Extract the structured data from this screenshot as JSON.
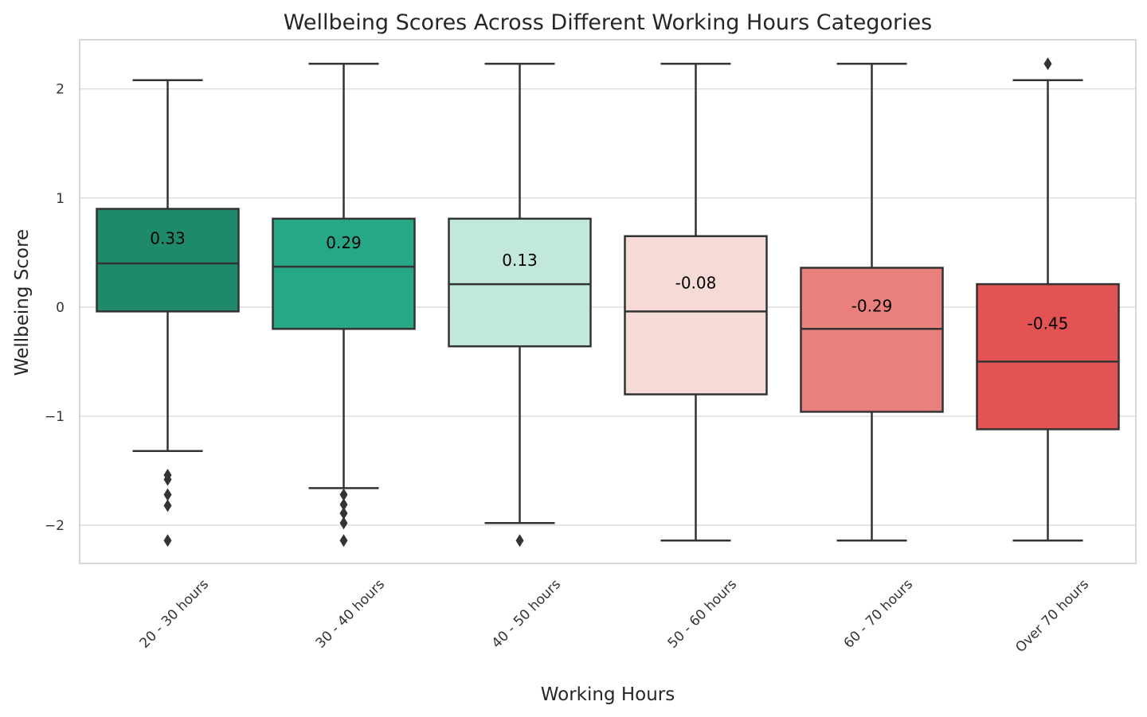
{
  "chart_data": {
    "type": "box",
    "title": "Wellbeing Scores Across Different Working Hours Categories",
    "xlabel": "Working Hours",
    "ylabel": "Wellbeing Score",
    "ylim": [
      -2.35,
      2.45
    ],
    "yticks": [
      2,
      1,
      0,
      -1,
      -2
    ],
    "ytick_labels": [
      "2",
      "1",
      "0",
      "−1",
      "−2"
    ],
    "grid": true,
    "categories": [
      "20 - 30 hours",
      "30 - 40 hours",
      "40 - 50 hours",
      "50 - 60 hours",
      "60 - 70 hours",
      "Over 70 hours"
    ],
    "boxes": [
      {
        "whisker_low": -1.32,
        "q1": -0.04,
        "median": 0.4,
        "q3": 0.9,
        "whisker_high": 2.08,
        "outliers": [
          -1.54,
          -1.58,
          -1.72,
          -1.82,
          -2.14
        ],
        "mean": 0.33,
        "mean_label": "0.33",
        "color": "#1e8a6b"
      },
      {
        "whisker_low": -1.66,
        "q1": -0.2,
        "median": 0.37,
        "q3": 0.81,
        "whisker_high": 2.23,
        "outliers": [
          -1.72,
          -1.81,
          -1.89,
          -1.98,
          -2.14
        ],
        "mean": 0.29,
        "mean_label": "0.29",
        "color": "#26a887"
      },
      {
        "whisker_low": -1.98,
        "q1": -0.36,
        "median": 0.21,
        "q3": 0.81,
        "whisker_high": 2.23,
        "outliers": [
          -2.14
        ],
        "mean": 0.13,
        "mean_label": "0.13",
        "color": "#c2e8db"
      },
      {
        "whisker_low": -2.14,
        "q1": -0.8,
        "median": -0.04,
        "q3": 0.65,
        "whisker_high": 2.23,
        "outliers": [],
        "mean": -0.08,
        "mean_label": "-0.08",
        "color": "#f6dad6"
      },
      {
        "whisker_low": -2.14,
        "q1": -0.96,
        "median": -0.2,
        "q3": 0.36,
        "whisker_high": 2.23,
        "outliers": [],
        "mean": -0.29,
        "mean_label": "-0.29",
        "color": "#ea807b"
      },
      {
        "whisker_low": -2.14,
        "q1": -1.12,
        "median": -0.5,
        "q3": 0.21,
        "whisker_high": 2.08,
        "outliers": [
          2.23
        ],
        "mean": -0.45,
        "mean_label": "-0.45",
        "color": "#e35353"
      }
    ]
  }
}
